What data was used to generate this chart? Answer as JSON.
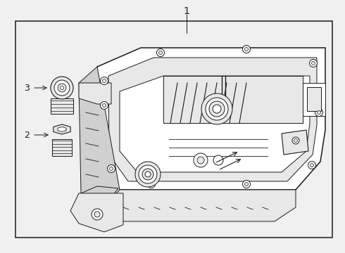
{
  "background_color": "#f0f0f0",
  "line_color": "#1a1a1a",
  "white": "#ffffff",
  "light_gray": "#e8e8e8",
  "mid_gray": "#d0d0d0",
  "label1": "1",
  "label2": "2",
  "label3": "3",
  "fig_width": 4.9,
  "fig_height": 3.6,
  "dpi": 100
}
